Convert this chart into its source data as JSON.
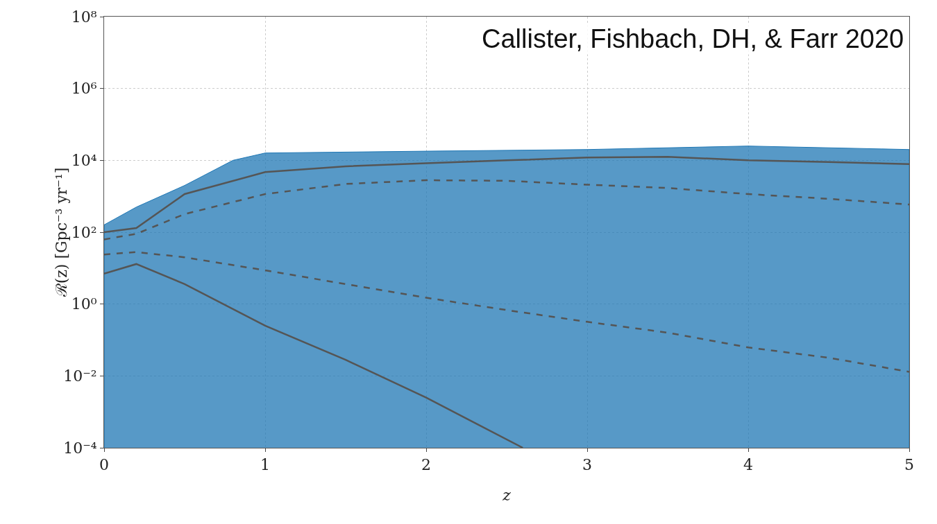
{
  "chart_data": {
    "type": "line",
    "xlabel": "z",
    "ylabel": "ℛ(z) [Gpc⁻³ yr⁻¹]",
    "annotations": [
      "Callister, Fishbach, DH, & Farr 2020"
    ],
    "x": [
      0,
      0.2,
      0.5,
      1,
      1.5,
      2,
      2.5,
      3,
      3.5,
      4,
      4.5,
      5
    ],
    "series": [
      {
        "type": "area",
        "color": "#1f77b4",
        "x": [
          0,
          0.2,
          0.5,
          0.8,
          1,
          2,
          3,
          4,
          5
        ],
        "values": [
          160,
          500,
          2000,
          10000,
          16000,
          18000,
          20000,
          25000,
          20000
        ]
      },
      {
        "color": "#555555",
        "line_style": "solid",
        "values": [
          100,
          130,
          1150,
          4700,
          6800,
          8300,
          10000,
          12000,
          12600,
          10000,
          9000,
          7900
        ]
      },
      {
        "color": "#555555",
        "line_style": "dashed",
        "values": [
          63,
          90,
          320,
          1150,
          2200,
          2800,
          2700,
          2100,
          1700,
          1150,
          850,
          590
        ]
      },
      {
        "color": "#555555",
        "line_style": "dashed",
        "values": [
          24,
          28,
          20,
          8.7,
          3.6,
          1.5,
          0.68,
          0.32,
          0.16,
          0.062,
          0.032,
          0.013
        ]
      },
      {
        "color": "#555555",
        "line_style": "solid",
        "x": [
          0,
          0.2,
          0.5,
          1,
          1.5,
          2,
          2.3,
          2.6
        ],
        "values": [
          7,
          13,
          3.6,
          0.25,
          0.028,
          0.0025,
          0.0005,
          0.0001
        ]
      }
    ],
    "log": "y",
    "grid": true,
    "marker": "none",
    "xlim": [
      0,
      5
    ],
    "xticks": [
      0,
      1,
      2,
      3,
      4,
      5
    ],
    "ylim": [
      0.0001,
      100000000
    ],
    "yticks": [
      {
        "value": 0.0001,
        "label": "10⁻⁴"
      },
      {
        "value": 0.01,
        "label": "10⁻²"
      },
      {
        "value": 1,
        "label": "10⁰"
      },
      {
        "value": 100,
        "label": "10²"
      },
      {
        "value": 10000,
        "label": "10⁴"
      },
      {
        "value": 1000000,
        "label": "10⁶"
      },
      {
        "value": 100000000,
        "label": "10⁸"
      }
    ]
  }
}
